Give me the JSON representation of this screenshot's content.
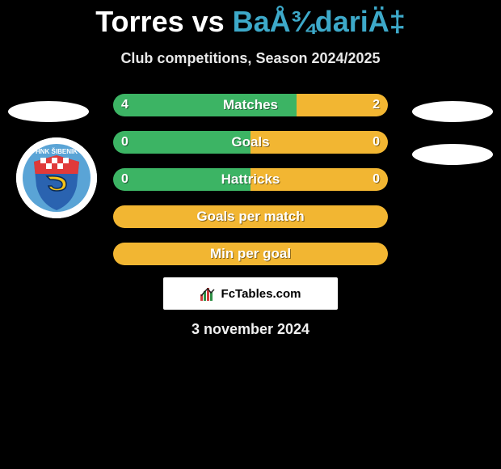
{
  "title": {
    "player1": "Torres",
    "vs": " vs ",
    "player2": "BaÅ¾dariÄ‡",
    "player1_color": "#ffffff",
    "player2_color": "#3da9c9"
  },
  "subtitle": "Club competitions, Season 2024/2025",
  "colors": {
    "left_bar": "#3cb464",
    "right_bar": "#f2b632",
    "background": "#000000"
  },
  "rows": [
    {
      "label": "Matches",
      "left": "4",
      "right": "2",
      "left_pct": 66.7,
      "show_values": true
    },
    {
      "label": "Goals",
      "left": "0",
      "right": "0",
      "left_pct": 50,
      "show_values": true
    },
    {
      "label": "Hattricks",
      "left": "0",
      "right": "0",
      "left_pct": 50,
      "show_values": true
    },
    {
      "label": "Goals per match",
      "left": "",
      "right": "",
      "left_pct": 0,
      "show_values": false
    },
    {
      "label": "Min per goal",
      "left": "",
      "right": "",
      "left_pct": 0,
      "show_values": false
    }
  ],
  "branding": "FcTables.com",
  "date": "3 november 2024",
  "badge": {
    "ring": "#5aa4d6",
    "inner_top": "#e03a3a",
    "inner_bottom": "#2a63b0",
    "s_bg": "#f6c417"
  }
}
